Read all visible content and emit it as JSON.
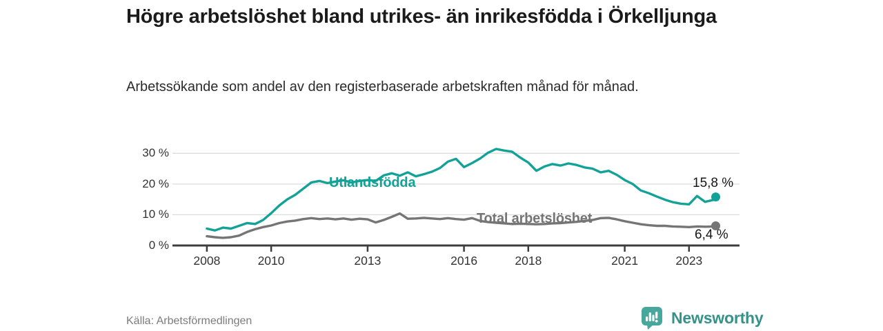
{
  "chart_data": {
    "type": "line",
    "title": "Högre arbetslöshet bland utrikes- än inrikesfödda i Örkelljunga",
    "subtitle": "Arbetssökande som andel av den registerbaserade arbetskraften månad för månad.",
    "source": "Källa: Arbetsförmedlingen",
    "xlim": [
      2006.93,
      2024.57
    ],
    "ylim": [
      0,
      35
    ],
    "grid": "horizontal-light",
    "legend_position": "inline-labels",
    "x_axis_ticks": [
      2008,
      2010,
      2013,
      2016,
      2018,
      2021,
      2023
    ],
    "y_axis_ticks": [
      {
        "value": 0,
        "label": "0 %"
      },
      {
        "value": 10,
        "label": "10 %"
      },
      {
        "value": 20,
        "label": "20 %"
      },
      {
        "value": 30,
        "label": "30 %"
      }
    ],
    "series": [
      {
        "name": "Utlandsfödda",
        "color": "#13a297",
        "end_label": "15,8 %",
        "end_value": 15.8,
        "x": [
          2008.0,
          2008.25,
          2008.5,
          2008.75,
          2009.0,
          2009.25,
          2009.5,
          2009.75,
          2010.0,
          2010.25,
          2010.5,
          2010.75,
          2011.0,
          2011.25,
          2011.5,
          2011.75,
          2012.0,
          2012.25,
          2012.5,
          2012.75,
          2013.0,
          2013.25,
          2013.5,
          2013.75,
          2014.0,
          2014.25,
          2014.5,
          2014.75,
          2015.0,
          2015.25,
          2015.5,
          2015.75,
          2016.0,
          2016.25,
          2016.5,
          2016.75,
          2017.0,
          2017.25,
          2017.5,
          2017.75,
          2018.0,
          2018.25,
          2018.5,
          2018.75,
          2019.0,
          2019.25,
          2019.5,
          2019.75,
          2020.0,
          2020.25,
          2020.5,
          2020.75,
          2021.0,
          2021.25,
          2021.5,
          2021.75,
          2022.0,
          2022.25,
          2022.5,
          2022.75,
          2023.0,
          2023.25,
          2023.5,
          2023.75,
          2023.83
        ],
        "values": [
          5.5,
          4.9,
          5.8,
          5.5,
          6.4,
          7.3,
          7.0,
          8.3,
          10.5,
          13.0,
          15.0,
          16.5,
          18.5,
          20.5,
          21.0,
          20.3,
          20.8,
          21.2,
          20.5,
          21.0,
          21.3,
          21.0,
          22.8,
          23.5,
          22.7,
          23.8,
          22.5,
          23.2,
          24.0,
          25.2,
          27.3,
          28.2,
          25.5,
          26.8,
          28.3,
          30.2,
          31.4,
          30.9,
          30.5,
          28.6,
          27.0,
          24.3,
          25.7,
          26.5,
          26.0,
          26.7,
          26.2,
          25.4,
          25.0,
          23.8,
          24.3,
          23.0,
          21.3,
          20.0,
          17.9,
          17.0,
          15.9,
          14.9,
          14.1,
          13.6,
          13.4,
          16.1,
          14.2,
          14.8,
          15.8
        ]
      },
      {
        "name": "Total arbetslöshet",
        "color": "#757575",
        "end_label": "6,4 %",
        "end_value": 6.4,
        "x": [
          2008.0,
          2008.25,
          2008.5,
          2008.75,
          2009.0,
          2009.25,
          2009.5,
          2009.75,
          2010.0,
          2010.25,
          2010.5,
          2010.75,
          2011.0,
          2011.25,
          2011.5,
          2011.75,
          2012.0,
          2012.25,
          2012.5,
          2012.75,
          2013.0,
          2013.25,
          2013.5,
          2013.75,
          2014.0,
          2014.25,
          2014.5,
          2014.75,
          2015.0,
          2015.25,
          2015.5,
          2015.75,
          2016.0,
          2016.25,
          2016.5,
          2016.75,
          2017.0,
          2017.25,
          2017.5,
          2017.75,
          2018.0,
          2018.25,
          2018.5,
          2018.75,
          2019.0,
          2019.25,
          2019.5,
          2019.75,
          2020.0,
          2020.25,
          2020.5,
          2020.75,
          2021.0,
          2021.25,
          2021.5,
          2021.75,
          2022.0,
          2022.25,
          2022.5,
          2022.75,
          2023.0,
          2023.25,
          2023.5,
          2023.75,
          2023.83
        ],
        "values": [
          3.0,
          2.7,
          2.5,
          2.7,
          3.2,
          4.4,
          5.3,
          6.0,
          6.5,
          7.3,
          7.8,
          8.1,
          8.6,
          8.9,
          8.6,
          8.8,
          8.5,
          8.8,
          8.4,
          8.7,
          8.5,
          7.5,
          8.3,
          9.3,
          10.4,
          8.7,
          8.8,
          9.0,
          8.8,
          8.6,
          8.9,
          8.6,
          8.4,
          8.9,
          8.0,
          7.6,
          7.4,
          7.2,
          7.0,
          7.1,
          7.0,
          6.9,
          7.0,
          7.2,
          7.3,
          7.5,
          7.7,
          8.0,
          8.3,
          8.9,
          9.0,
          8.5,
          7.9,
          7.4,
          6.9,
          6.6,
          6.4,
          6.4,
          6.2,
          6.1,
          6.0,
          6.2,
          6.1,
          6.2,
          6.4
        ]
      }
    ]
  },
  "footer": {
    "brand_name": "Newsworthy"
  },
  "colors": {
    "accent_teal": "#13a297",
    "series_gray": "#757575",
    "brand_teal": "#35928b",
    "axis": "#3c3c3c",
    "grid": "#dcdcdc",
    "title_text": "#1b1b1b",
    "muted_text": "#7b7b7b"
  }
}
